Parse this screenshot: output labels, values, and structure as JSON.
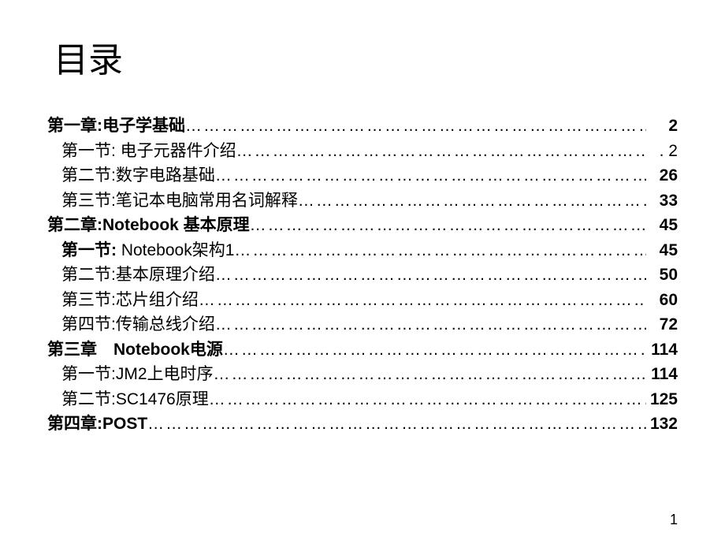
{
  "title": "目录",
  "page_number": "1",
  "entries": [
    {
      "type": "chapter",
      "label": "第一章:电子学基础",
      "page": "2",
      "leader": "ellipsis"
    },
    {
      "type": "section",
      "label": "第一节: 电子元器件介绍",
      "page": ". 2",
      "leader": "ellipsis",
      "page_style": "normal"
    },
    {
      "type": "section",
      "label": "第二节:数字电路基础",
      "page": "26",
      "leader": "ellipsis"
    },
    {
      "type": "section",
      "label": "第三节:笔记本电脑常用名词解释",
      "page": "33",
      "leader": "ellipsis"
    },
    {
      "type": "chapter",
      "label": "第二章:Notebook 基本原理",
      "page": "45",
      "leader": "ellipsis"
    },
    {
      "type": "section",
      "label_bold": "第一节: ",
      "label_rest": "Notebook架构1",
      "page": "45",
      "leader": "ellipsis"
    },
    {
      "type": "section",
      "label": "第二节:基本原理介绍",
      "page": "50",
      "leader": "ellipsis"
    },
    {
      "type": "section",
      "label": "第三节:芯片组介绍",
      "page": "60",
      "leader": "ellipsis"
    },
    {
      "type": "section",
      "label": "第四节:传输总线介绍",
      "page": "72",
      "leader": "ellipsis"
    },
    {
      "type": "chapter",
      "label": "第三章　Notebook电源",
      "page": "114",
      "leader": "ellipsis"
    },
    {
      "type": "section",
      "label": "第一节:JM2上电时序",
      "page": "114",
      "leader": "ellipsis"
    },
    {
      "type": "section",
      "label": "第二节:SC1476原理",
      "page": "125",
      "leader": "ellipsis"
    },
    {
      "type": "chapter",
      "label": "第四章:POST",
      "page": "132",
      "leader": "ellipsis"
    }
  ]
}
